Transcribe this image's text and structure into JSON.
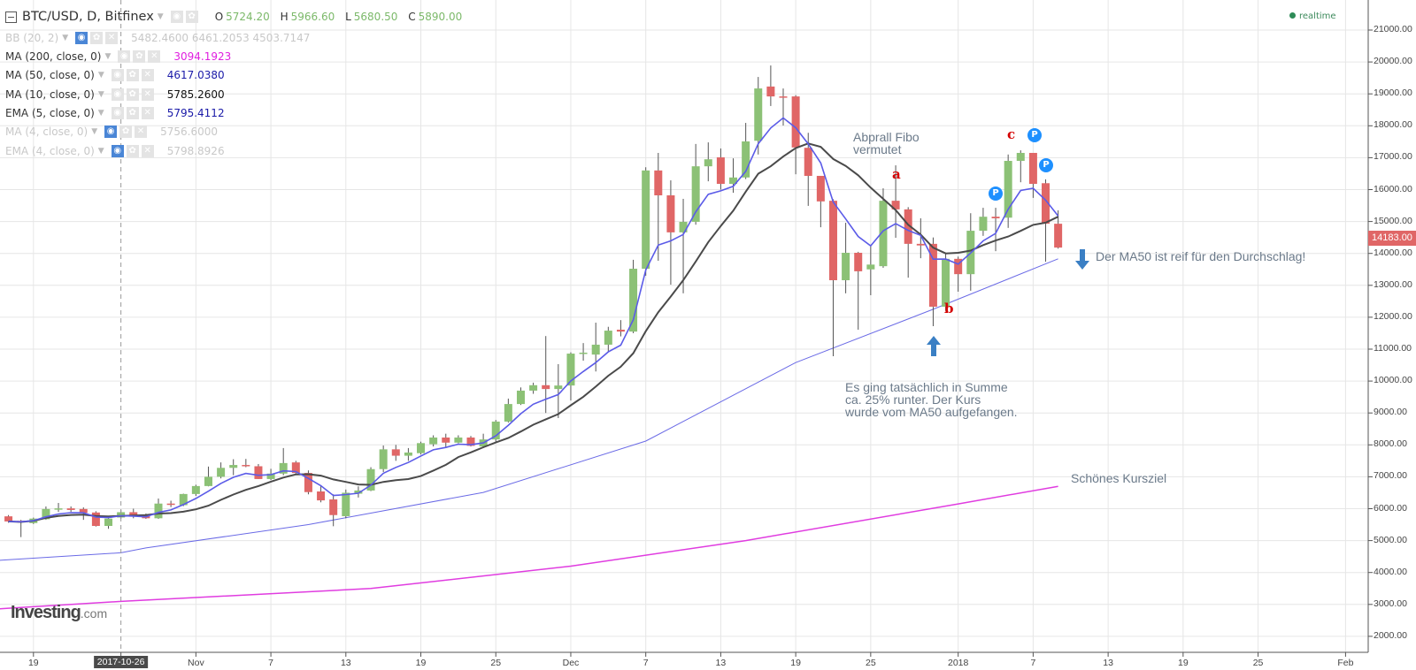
{
  "header": {
    "symbol": "BTC/USD, D, Bitfinex",
    "ohlc": [
      {
        "key": "O",
        "value": "5724.20"
      },
      {
        "key": "H",
        "value": "5966.60"
      },
      {
        "key": "L",
        "value": "5680.50"
      },
      {
        "key": "C",
        "value": "5890.00"
      }
    ],
    "realtime": "realtime"
  },
  "indicators": [
    {
      "label": "BB (20, 2)",
      "values": "5482.4600  6461.2053  4503.7147",
      "hidden": true,
      "color": "#c8c8c8"
    },
    {
      "label": "MA (200, close, 0)",
      "values": "3094.1923",
      "hidden": false,
      "color": "#e020e0"
    },
    {
      "label": "MA (50, close, 0)",
      "values": "4617.0380",
      "hidden": false,
      "color": "#1a1aa8"
    },
    {
      "label": "MA (10, close, 0)",
      "values": "5785.2600",
      "hidden": false,
      "color": "#111111"
    },
    {
      "label": "EMA (5, close, 0)",
      "values": "5795.4112",
      "hidden": false,
      "color": "#1a1aa8"
    },
    {
      "label": "MA (4, close, 0)",
      "values": "5756.6000",
      "hidden": true,
      "color": "#c8c8c8"
    },
    {
      "label": "EMA (4, close, 0)",
      "values": "5798.8926",
      "hidden": true,
      "color": "#c8c8c8"
    }
  ],
  "last_price": "14183.00",
  "annotations": {
    "fibo": "Abprall Fibo\nvermutet",
    "label_a": "a",
    "label_b": "b",
    "label_c": "c",
    "p_marker": "P",
    "drop_note": "Es ging tatsächlich in Summe\nca. 25% runter. Der Kurs\nwurde vom MA50 aufgefangen.",
    "ma50_note": "Der MA50 ist reif für den Durchschlag!",
    "target_note": "Schönes Kursziel"
  },
  "logo": {
    "main": "Investing",
    "suffix": ".com"
  },
  "colors": {
    "up": "#8cc176",
    "down": "#e06666",
    "ema5": "#5b5be8",
    "ma10": "#4a4a4a",
    "ma50": "#6a6ae6",
    "ma200": "#e03ce0",
    "arrow": "#3a7fc4"
  },
  "chart_data": {
    "type": "candlestick",
    "ylim": [
      2000,
      21000
    ],
    "yticks": [
      "2000.00",
      "3000.00",
      "4000.00",
      "5000.00",
      "6000.00",
      "7000.00",
      "8000.00",
      "9000.00",
      "10000.00",
      "11000.00",
      "12000.00",
      "13000.00",
      "14000.00",
      "15000.00",
      "16000.00",
      "17000.00",
      "18000.00",
      "19000.00",
      "20000.00",
      "21000.00"
    ],
    "xticks": [
      {
        "label": "19",
        "date": "2017-10-19"
      },
      {
        "label": "2017-10-26",
        "date": "2017-10-26",
        "highlight": true
      },
      {
        "label": "Nov",
        "date": "2017-11-01"
      },
      {
        "label": "7",
        "date": "2017-11-07"
      },
      {
        "label": "13",
        "date": "2017-11-13"
      },
      {
        "label": "19",
        "date": "2017-11-19"
      },
      {
        "label": "25",
        "date": "2017-11-25"
      },
      {
        "label": "Dec",
        "date": "2017-12-01"
      },
      {
        "label": "7",
        "date": "2017-12-07"
      },
      {
        "label": "13",
        "date": "2017-12-13"
      },
      {
        "label": "19",
        "date": "2017-12-19"
      },
      {
        "label": "25",
        "date": "2017-12-25"
      },
      {
        "label": "2018",
        "date": "2018-01-01"
      },
      {
        "label": "7",
        "date": "2018-01-07"
      },
      {
        "label": "13",
        "date": "2018-01-13"
      },
      {
        "label": "19",
        "date": "2018-01-19"
      },
      {
        "label": "25",
        "date": "2018-01-25"
      },
      {
        "label": "Feb",
        "date": "2018-02-01"
      }
    ],
    "grid": true,
    "columns": [
      "date",
      "open",
      "high",
      "low",
      "close"
    ],
    "candles": [
      [
        "2017-10-17",
        5760,
        5800,
        5560,
        5600
      ],
      [
        "2017-10-18",
        5620,
        5650,
        5110,
        5570
      ],
      [
        "2017-10-19",
        5550,
        5720,
        5520,
        5690
      ],
      [
        "2017-10-20",
        5670,
        6070,
        5650,
        5990
      ],
      [
        "2017-10-21",
        5970,
        6180,
        5900,
        6010
      ],
      [
        "2017-10-22",
        6010,
        6070,
        5900,
        5960
      ],
      [
        "2017-10-23",
        5990,
        6040,
        5650,
        5870
      ],
      [
        "2017-10-24",
        5880,
        5920,
        5440,
        5460
      ],
      [
        "2017-10-25",
        5460,
        5760,
        5370,
        5690
      ],
      [
        "2017-10-26",
        5724.2,
        5966.6,
        5680.5,
        5890
      ],
      [
        "2017-10-27",
        5890,
        6000,
        5700,
        5750
      ],
      [
        "2017-10-28",
        5780,
        5850,
        5680,
        5700
      ],
      [
        "2017-10-29",
        5700,
        6320,
        5680,
        6160
      ],
      [
        "2017-10-30",
        6160,
        6250,
        6050,
        6120
      ],
      [
        "2017-10-31",
        6110,
        6470,
        6080,
        6460
      ],
      [
        "2017-11-01",
        6460,
        6750,
        6400,
        6710
      ],
      [
        "2017-11-02",
        6710,
        7320,
        6700,
        7000
      ],
      [
        "2017-11-03",
        7000,
        7450,
        6950,
        7280
      ],
      [
        "2017-11-04",
        7280,
        7550,
        7050,
        7370
      ],
      [
        "2017-11-05",
        7370,
        7560,
        7300,
        7350
      ],
      [
        "2017-11-06",
        7330,
        7400,
        6930,
        6930
      ],
      [
        "2017-11-07",
        6930,
        7250,
        6900,
        7100
      ],
      [
        "2017-11-08",
        7100,
        7900,
        7050,
        7430
      ],
      [
        "2017-11-09",
        7450,
        7500,
        7050,
        7120
      ],
      [
        "2017-11-10",
        7120,
        7200,
        6450,
        6520
      ],
      [
        "2017-11-11",
        6540,
        6720,
        6200,
        6260
      ],
      [
        "2017-11-12",
        6290,
        6450,
        5450,
        5800
      ],
      [
        "2017-11-13",
        5765,
        6600,
        5700,
        6500
      ],
      [
        "2017-11-14",
        6470,
        6700,
        6350,
        6570
      ],
      [
        "2017-11-15",
        6570,
        7300,
        6550,
        7240
      ],
      [
        "2017-11-16",
        7240,
        7980,
        7150,
        7860
      ],
      [
        "2017-11-17",
        7860,
        8000,
        7500,
        7660
      ],
      [
        "2017-11-18",
        7660,
        7900,
        7500,
        7760
      ],
      [
        "2017-11-19",
        7740,
        8100,
        7700,
        8055
      ],
      [
        "2017-11-20",
        8020,
        8300,
        7950,
        8230
      ],
      [
        "2017-11-21",
        8230,
        8350,
        7900,
        8070
      ],
      [
        "2017-11-22",
        8070,
        8300,
        8050,
        8230
      ],
      [
        "2017-11-23",
        8230,
        8280,
        7950,
        7970
      ],
      [
        "2017-11-24",
        7950,
        8350,
        7900,
        8170
      ],
      [
        "2017-11-25",
        8170,
        8780,
        8100,
        8730
      ],
      [
        "2017-11-26",
        8730,
        9450,
        8700,
        9280
      ],
      [
        "2017-11-27",
        9280,
        9800,
        9250,
        9700
      ],
      [
        "2017-11-28",
        9700,
        9950,
        9600,
        9870
      ],
      [
        "2017-11-29",
        9870,
        11410,
        9000,
        9750
      ],
      [
        "2017-11-30",
        9750,
        10530,
        8840,
        9860
      ],
      [
        "2017-12-01",
        9860,
        10900,
        9390,
        10860
      ],
      [
        "2017-12-02",
        10860,
        11190,
        10640,
        10890
      ],
      [
        "2017-12-03",
        10830,
        11830,
        10300,
        11140
      ],
      [
        "2017-12-04",
        11140,
        11700,
        10900,
        11580
      ],
      [
        "2017-12-05",
        11610,
        11910,
        11400,
        11550
      ],
      [
        "2017-12-06",
        11550,
        13800,
        11500,
        13520
      ],
      [
        "2017-12-07",
        13520,
        16700,
        13300,
        16600
      ],
      [
        "2017-12-08",
        16600,
        17150,
        13770,
        15820
      ],
      [
        "2017-12-09",
        15820,
        16290,
        13020,
        14660
      ],
      [
        "2017-12-10",
        14660,
        15710,
        12750,
        14990
      ],
      [
        "2017-12-11",
        14990,
        17430,
        14900,
        16730
      ],
      [
        "2017-12-12",
        16730,
        17480,
        16260,
        16950
      ],
      [
        "2017-12-13",
        17010,
        17290,
        16000,
        16180
      ],
      [
        "2017-12-14",
        16180,
        16980,
        15900,
        16380
      ],
      [
        "2017-12-15",
        16380,
        18090,
        16330,
        17510
      ],
      [
        "2017-12-16",
        17530,
        19530,
        17100,
        19170
      ],
      [
        "2017-12-17",
        19230,
        19890,
        18620,
        18920
      ],
      [
        "2017-12-18",
        18920,
        19170,
        18010,
        18880
      ],
      [
        "2017-12-19",
        18920,
        18960,
        16480,
        17320
      ],
      [
        "2017-12-20",
        17310,
        17780,
        15490,
        16430
      ],
      [
        "2017-12-21",
        16430,
        16430,
        14820,
        15630
      ],
      [
        "2017-12-22",
        15650,
        15700,
        10780,
        13160
      ],
      [
        "2017-12-23",
        13160,
        14960,
        12750,
        14020
      ],
      [
        "2017-12-24",
        14020,
        14050,
        11610,
        13440
      ],
      [
        "2017-12-25",
        13500,
        14270,
        12690,
        13650
      ],
      [
        "2017-12-26",
        13600,
        16040,
        13550,
        15650
      ],
      [
        "2017-12-27",
        15650,
        16760,
        14490,
        15380
      ],
      [
        "2017-12-28",
        15380,
        15450,
        13240,
        14300
      ],
      [
        "2017-12-29",
        14300,
        15100,
        13850,
        14250
      ],
      [
        "2017-12-30",
        14300,
        14500,
        11720,
        12330
      ],
      [
        "2017-12-31",
        12330,
        14000,
        12200,
        13830
      ],
      [
        "2018-01-01",
        13830,
        13900,
        12800,
        13350
      ],
      [
        "2018-01-02",
        13350,
        15260,
        12830,
        14710
      ],
      [
        "2018-01-03",
        14710,
        15430,
        14550,
        15150
      ],
      [
        "2018-01-04",
        15150,
        15430,
        14070,
        15100
      ],
      [
        "2018-01-05",
        15120,
        17100,
        14800,
        16900
      ],
      [
        "2018-01-06",
        16900,
        17230,
        16230,
        17150
      ],
      [
        "2018-01-07",
        17150,
        17150,
        15740,
        16180
      ],
      [
        "2018-01-08",
        16200,
        16320,
        13740,
        14930
      ],
      [
        "2018-01-09",
        14930,
        15350,
        14150,
        14183
      ]
    ],
    "series": [
      {
        "name": "MA (50, close, 0)",
        "points": [
          [
            "2017-10-17",
            4400
          ],
          [
            "2017-10-26",
            4617
          ],
          [
            "2017-10-28",
            4770
          ],
          [
            "2017-11-10",
            5500
          ],
          [
            "2017-11-24",
            6510
          ],
          [
            "2017-12-07",
            8120
          ],
          [
            "2017-12-19",
            10580
          ],
          [
            "2017-12-30",
            12250
          ],
          [
            "2018-01-09",
            13830
          ]
        ]
      },
      {
        "name": "MA (200, close, 0)",
        "points": [
          [
            "2017-10-17",
            2880
          ],
          [
            "2017-10-26",
            3094
          ],
          [
            "2017-11-15",
            3500
          ],
          [
            "2017-12-01",
            4200
          ],
          [
            "2017-12-15",
            5000
          ],
          [
            "2018-01-01",
            6150
          ],
          [
            "2018-01-09",
            6700
          ]
        ]
      }
    ],
    "computed_series": [
      "EMA (5, close, 0)",
      "MA (10, close, 0)"
    ]
  }
}
